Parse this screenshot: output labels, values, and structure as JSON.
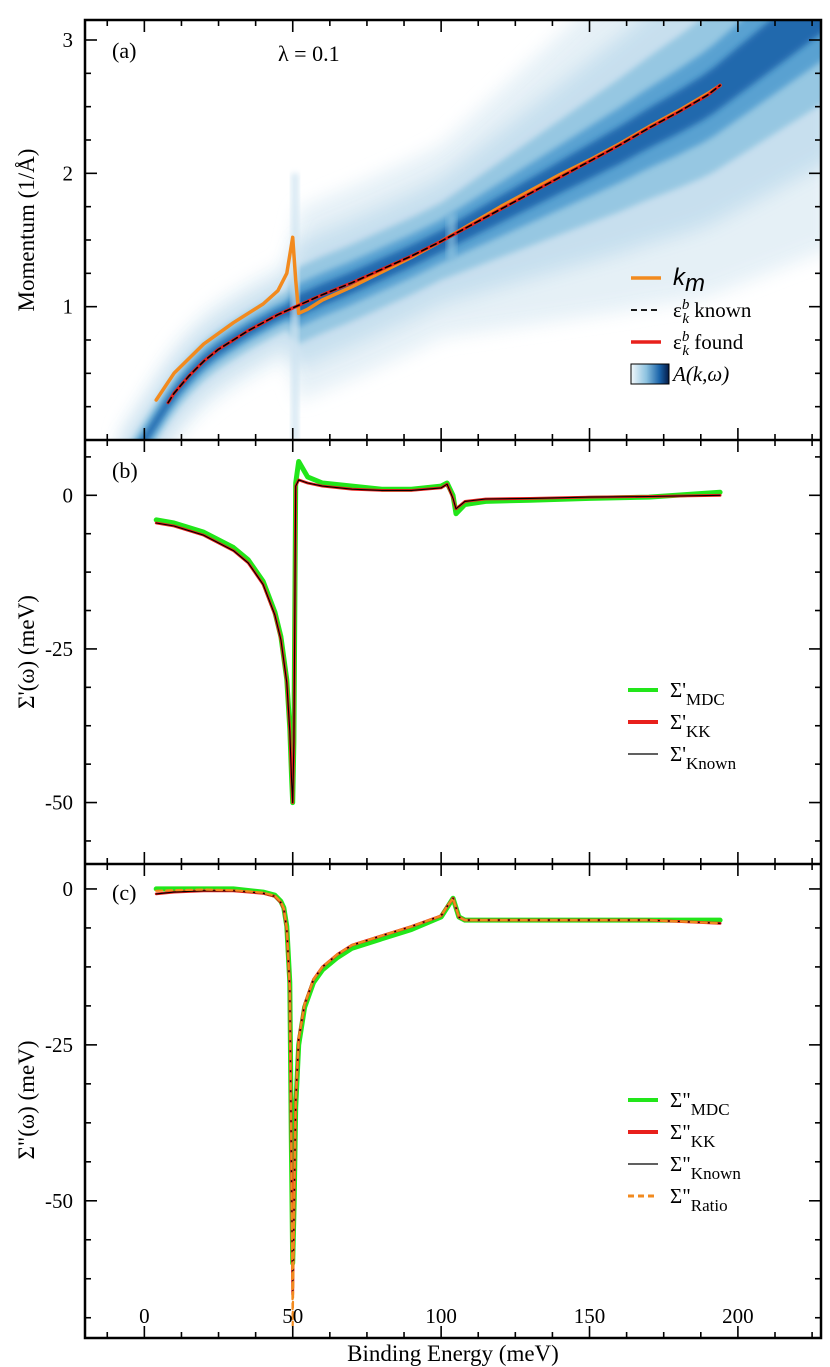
{
  "chart_data": {
    "type": "line",
    "xlabel": "Binding Energy   (meV)",
    "xlim": [
      -20,
      228
    ],
    "xticks": [
      0,
      50,
      100,
      150,
      200
    ],
    "xtick_labels": [
      "0",
      "50",
      "100",
      "150",
      "200"
    ],
    "panels": [
      {
        "id": "a",
        "label": "(a)",
        "annotation": "λ = 0.1",
        "ylabel": "Momentum   (1/Å)",
        "ylim": [
          0,
          3.15
        ],
        "yticks": [
          1,
          2,
          3
        ],
        "ytick_labels": [
          "1",
          "2",
          "3"
        ],
        "colors": {
          "km": "#f28a1e",
          "known": "#000000",
          "found": "#e8201c",
          "map": "#1c6fb2"
        },
        "legend": [
          {
            "text": "k",
            "sub": "m",
            "style": "km"
          },
          {
            "text": "ε",
            "sub": "k",
            "sup": "b",
            "rest": " known",
            "style": "known"
          },
          {
            "text": "ε",
            "sub": "k",
            "sup": "b",
            "rest": " found",
            "style": "found"
          },
          {
            "text": "A(k,ω)",
            "style": "colormap"
          }
        ],
        "series": [
          {
            "name": "k_m",
            "x": [
              4,
              10,
              20,
              30,
              40,
              45,
              48,
              50,
              51,
              52,
              55,
              60,
              70,
              80,
              90,
              100,
              110,
              120,
              130,
              140,
              150,
              160,
              170,
              180,
              190,
              194
            ],
            "y": [
              0.3,
              0.5,
              0.72,
              0.88,
              1.02,
              1.12,
              1.25,
              1.52,
              1.2,
              0.95,
              0.98,
              1.05,
              1.15,
              1.26,
              1.37,
              1.49,
              1.62,
              1.75,
              1.87,
              1.99,
              2.1,
              2.22,
              2.35,
              2.47,
              2.6,
              2.66
            ]
          },
          {
            "name": "ε_k^b known",
            "x": [
              8,
              10,
              15,
              20,
              25,
              30,
              35,
              40,
              45,
              50,
              55,
              60,
              70,
              80,
              90,
              100,
              110,
              120,
              130,
              140,
              150,
              160,
              170,
              180,
              190,
              194
            ],
            "y": [
              0.28,
              0.35,
              0.48,
              0.59,
              0.68,
              0.75,
              0.82,
              0.88,
              0.94,
              0.99,
              1.04,
              1.09,
              1.18,
              1.28,
              1.38,
              1.49,
              1.61,
              1.73,
              1.85,
              1.97,
              2.09,
              2.21,
              2.34,
              2.46,
              2.59,
              2.66
            ]
          },
          {
            "name": "ε_k^b found",
            "x": [
              8,
              10,
              15,
              20,
              25,
              30,
              35,
              40,
              45,
              50,
              55,
              60,
              70,
              80,
              90,
              100,
              110,
              120,
              130,
              140,
              150,
              160,
              170,
              180,
              190,
              194
            ],
            "y": [
              0.28,
              0.35,
              0.48,
              0.59,
              0.68,
              0.75,
              0.82,
              0.88,
              0.94,
              0.99,
              1.04,
              1.09,
              1.18,
              1.28,
              1.38,
              1.49,
              1.61,
              1.73,
              1.85,
              1.97,
              2.09,
              2.21,
              2.34,
              2.46,
              2.59,
              2.66
            ]
          }
        ]
      },
      {
        "id": "b",
        "label": "(b)",
        "ylabel": "Σ'(ω)   (meV)",
        "ylim": [
          -60,
          9
        ],
        "yticks": [
          0,
          -25,
          -50
        ],
        "ytick_labels": [
          "0",
          "-25",
          "-50"
        ],
        "legend": [
          {
            "text": "Σ'",
            "sub": "MDC",
            "style": "mdc"
          },
          {
            "text": "Σ'",
            "sub": "KK",
            "style": "kk"
          },
          {
            "text": "Σ'",
            "sub": "Known",
            "style": "known"
          }
        ],
        "series": [
          {
            "name": "Σ'_MDC",
            "color": "#22e61a",
            "x": [
              4,
              10,
              20,
              30,
              35,
              40,
              44,
              46,
              48,
              49,
              49.6,
              50,
              50.4,
              51,
              52,
              55,
              60,
              70,
              80,
              90,
              100,
              102,
              104,
              105,
              108,
              115,
              130,
              150,
              170,
              194
            ],
            "y": [
              -4,
              -4.5,
              -6,
              -8.5,
              -10.5,
              -14,
              -19,
              -23,
              -30,
              -38,
              -46,
              -50,
              -40,
              2,
              5.5,
              3,
              2,
              1.5,
              1,
              1,
              1.5,
              2,
              0,
              -3,
              -1.5,
              -1,
              -0.8,
              -0.5,
              -0.3,
              0.5
            ]
          },
          {
            "name": "Σ'_KK",
            "color": "#e8201c",
            "x": [
              4,
              10,
              20,
              30,
              35,
              40,
              44,
              46,
              48,
              49,
              49.6,
              50,
              50.4,
              51,
              52,
              55,
              60,
              70,
              80,
              90,
              100,
              102,
              104,
              105,
              108,
              115,
              130,
              150,
              170,
              194
            ],
            "y": [
              -4.5,
              -5,
              -6.5,
              -9,
              -11,
              -14.5,
              -19.5,
              -23.5,
              -30.5,
              -38.5,
              -46.5,
              -50,
              -40,
              1.5,
              2.5,
              2,
              1.5,
              1,
              0.8,
              0.8,
              1.2,
              1.8,
              -0.5,
              -2.2,
              -1,
              -0.6,
              -0.5,
              -0.3,
              -0.2,
              0
            ]
          },
          {
            "name": "Σ'_Known",
            "color": "#000000",
            "x": [
              4,
              10,
              20,
              30,
              35,
              40,
              44,
              46,
              48,
              49,
              49.6,
              50,
              50.4,
              51,
              52,
              55,
              60,
              70,
              80,
              90,
              100,
              102,
              104,
              105,
              108,
              115,
              130,
              150,
              170,
              194
            ],
            "y": [
              -4.5,
              -5,
              -6.5,
              -9,
              -11,
              -14.5,
              -19.5,
              -23.5,
              -30.5,
              -38.5,
              -46.5,
              -50,
              -40,
              1.5,
              2.5,
              2,
              1.5,
              1,
              0.8,
              0.8,
              1.2,
              1.8,
              -0.5,
              -2.2,
              -1,
              -0.6,
              -0.5,
              -0.3,
              -0.2,
              0
            ]
          }
        ]
      },
      {
        "id": "c",
        "label": "(c)",
        "ylabel": "Σ\"(ω)   (meV)",
        "ylim": [
          -72,
          4
        ],
        "yticks": [
          0,
          -25,
          -50
        ],
        "ytick_labels": [
          "0",
          "-25",
          "-50"
        ],
        "legend": [
          {
            "text": "Σ\"",
            "sub": "MDC",
            "style": "mdc"
          },
          {
            "text": "Σ\"",
            "sub": "KK",
            "style": "kk"
          },
          {
            "text": "Σ\"",
            "sub": "Known",
            "style": "known"
          },
          {
            "text": "Σ\"",
            "sub": "Ratio",
            "style": "ratio"
          }
        ],
        "series": [
          {
            "name": "Σ\"_MDC",
            "color": "#22e61a",
            "x": [
              4,
              10,
              20,
              30,
              40,
              44,
              46,
              47,
              48,
              49,
              49.5,
              50,
              50.5,
              51,
              52,
              54,
              57,
              60,
              65,
              70,
              80,
              90,
              100,
              102,
              104,
              106,
              108,
              120,
              150,
              170,
              194
            ],
            "y": [
              0,
              0,
              0,
              0,
              -0.5,
              -1,
              -2,
              -3,
              -6,
              -15,
              -40,
              -60,
              -50,
              -35,
              -25,
              -19,
              -15,
              -13,
              -11,
              -9.5,
              -8,
              -6.5,
              -4.5,
              -3,
              -1.5,
              -4.5,
              -5,
              -5,
              -5,
              -5,
              -5
            ]
          },
          {
            "name": "Σ\"_KK",
            "color": "#e8201c",
            "x": [
              4,
              10,
              20,
              30,
              40,
              44,
              46,
              47,
              48,
              49,
              49.5,
              50,
              50.5,
              51,
              52,
              54,
              57,
              60,
              65,
              70,
              80,
              90,
              100,
              102,
              104,
              106,
              108,
              120,
              150,
              170,
              194
            ],
            "y": [
              -0.8,
              -0.5,
              -0.3,
              -0.3,
              -0.7,
              -1.2,
              -2.2,
              -3.2,
              -6.5,
              -16,
              -42,
              -65,
              -50,
              -34,
              -24,
              -18.5,
              -14.5,
              -12.5,
              -10.5,
              -9,
              -7.5,
              -6,
              -4.3,
              -2.8,
              -1.5,
              -4.5,
              -5,
              -5,
              -5,
              -5,
              -5.5
            ]
          },
          {
            "name": "Σ\"_Known",
            "color": "#000000",
            "x": [
              4,
              10,
              20,
              30,
              40,
              44,
              46,
              47,
              48,
              49,
              49.5,
              50,
              50.5,
              51,
              52,
              54,
              57,
              60,
              65,
              70,
              80,
              90,
              100,
              102,
              104,
              106,
              108,
              120,
              150,
              170,
              194
            ],
            "y": [
              -0.8,
              -0.5,
              -0.3,
              -0.3,
              -0.7,
              -1.2,
              -2.2,
              -3.2,
              -6.5,
              -16,
              -42,
              -65,
              -50,
              -34,
              -24,
              -18.5,
              -14.5,
              -12.5,
              -10.5,
              -9,
              -7.5,
              -6,
              -4.3,
              -2.8,
              -1.5,
              -4.5,
              -5,
              -5,
              -5,
              -5,
              -5.5
            ]
          },
          {
            "name": "Σ\"_Ratio",
            "color": "#f28a1e",
            "x": [
              4,
              10,
              20,
              30,
              40,
              44,
              46,
              47,
              48,
              49,
              49.5,
              50,
              50.5,
              51,
              52,
              54,
              57,
              60,
              65,
              70,
              80,
              90,
              100,
              102,
              104,
              106,
              108,
              120,
              150,
              170,
              194
            ],
            "y": [
              -0.3,
              -0.2,
              -0.1,
              -0.2,
              -0.6,
              -1.1,
              -2.1,
              -3.1,
              -6.3,
              -16,
              -42,
              -70,
              -50,
              -34,
              -24,
              -18.5,
              -14.5,
              -12.5,
              -10.5,
              -9,
              -7.5,
              -6,
              -4.3,
              -2.8,
              -1.5,
              -4.5,
              -5,
              -5,
              -5,
              -5,
              -5.5
            ]
          }
        ]
      }
    ]
  }
}
